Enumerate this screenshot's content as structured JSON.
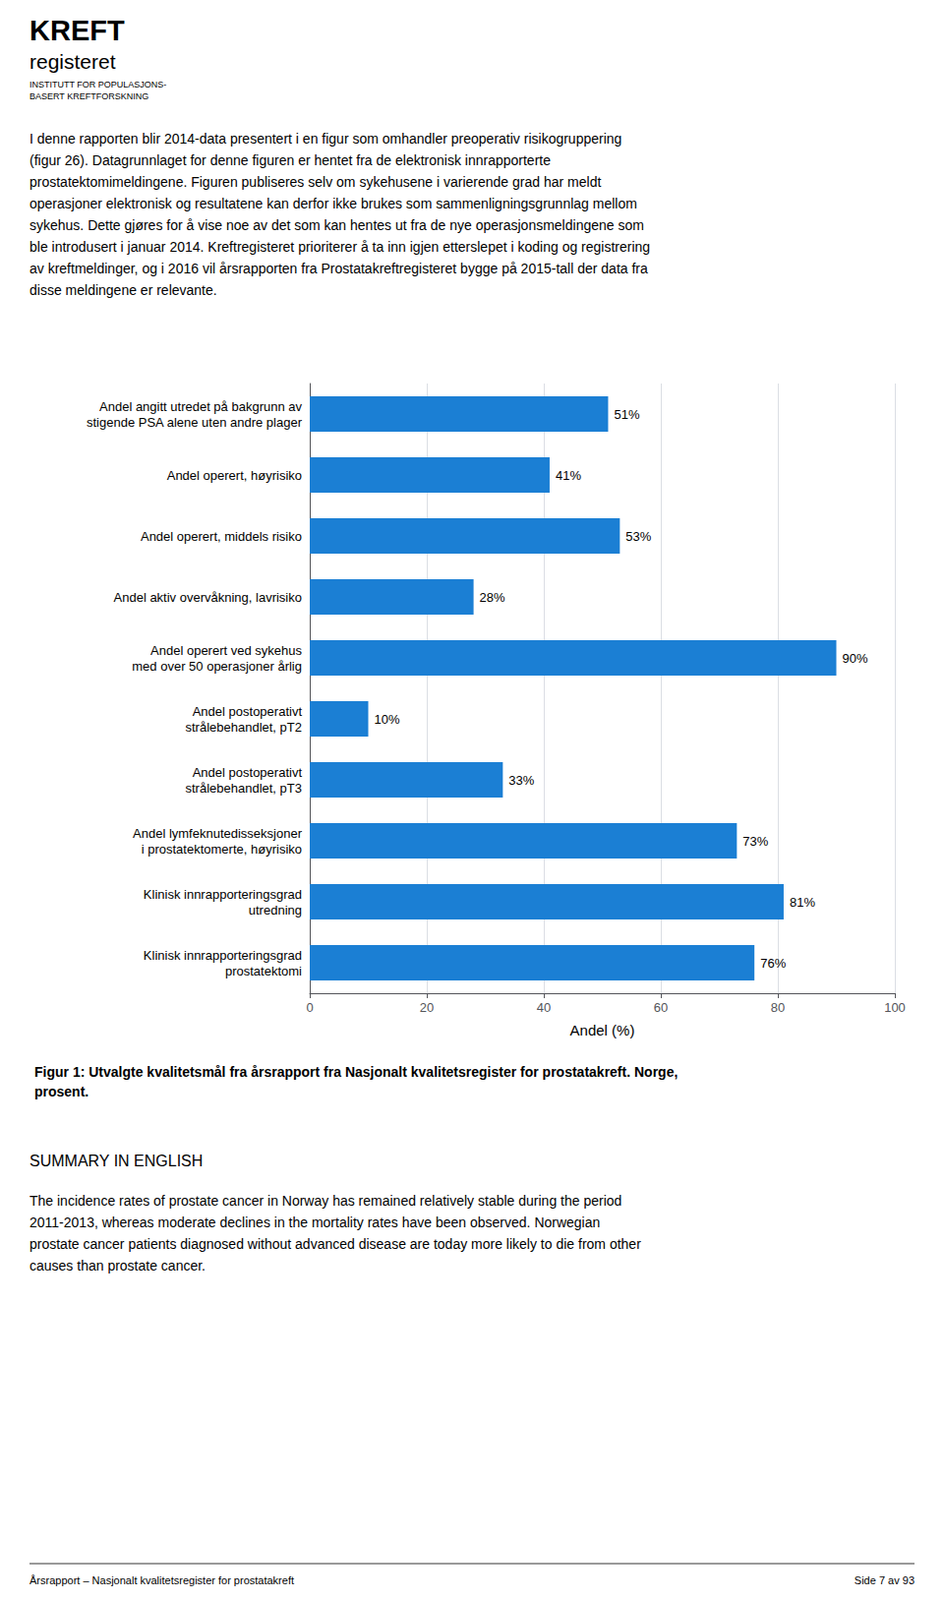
{
  "chart_data": {
    "type": "bar",
    "orientation": "horizontal",
    "title": "Figur 1: Utvalgte kvalitetsmål fra årsrapport fra Nasjonalt kvalitetsregister for prostatakreft. Norge,\nprosent.",
    "categories": [
      "Andel angitt utredet på bakgrunn av\nstigende PSA alene uten andre plager",
      "Andel operert, høyrisiko",
      "Andel operert, middels risiko",
      "Andel aktiv overvåkning, lavrisiko",
      "Andel operert ved sykehus\nmed over 50 operasjoner årlig",
      "Andel postoperativt\nstrålebehandlet, pT2",
      "Andel postoperativt\nstrålebehandlet, pT3",
      "Andel lymfeknutedisseksjoner\ni prostatektomerte, høyrisiko",
      "Klinisk innrapporteringsgrad\nutredning",
      "Klinisk innrapporteringsgrad\nprostatektomi"
    ],
    "values": [
      51,
      41,
      53,
      28,
      90,
      10,
      33,
      73,
      81,
      76
    ],
    "value_labels": [
      "51%",
      "41%",
      "53%",
      "28%",
      "90%",
      "10%",
      "33%",
      "73%",
      "81%",
      "76%"
    ],
    "data_labels": true,
    "color": "#1b7fd4",
    "xlim": [
      0,
      100
    ],
    "xticks": [
      0,
      20,
      40,
      60,
      80,
      100
    ],
    "xlabel": "Andel (%)",
    "grid": true,
    "annotations": [
      "KREFT",
      "registeret",
      "INSTITUTT FOR POPULASJONS-\nBASERT KREFTFORSKNING",
      "I denne rapporten blir 2014-data presentert i en figur som omhandler preoperativ risikogruppering\n(figur 26). Datagrunnlaget for denne figuren er hentet fra de elektronisk innrapporterte\nprostatektomimeldingene. Figuren publiseres selv om sykehusene i varierende grad har meldt\noperasjoner elektronisk og resultatene kan derfor ikke brukes som sammenligningsgrunnlag mellom\nsykehus. Dette gjøres for å vise noe av det som kan hentes ut fra de nye operasjonsmeldingene som\nble introdusert i januar 2014. Kreftregisteret prioriterer å ta inn igjen etterslepet i koding og registrering\nav kreftmeldinger, og i 2016 vil årsrapporten fra Prostatakreftregisteret bygge på 2015-tall der data fra\ndisse meldingene er relevante.",
      "SUMMARY IN ENGLISH",
      "The incidence rates of prostate cancer in Norway has remained relatively stable during the period\n2011-2013, whereas moderate declines in the mortality rates have been observed. Norwegian\nprostate cancer patients diagnosed without advanced disease are today more likely to die from other\ncauses than prostate cancer.",
      "Årsrapport – Nasjonalt kvalitetsregister for prostatakreft",
      "Side 7 av 93"
    ]
  }
}
